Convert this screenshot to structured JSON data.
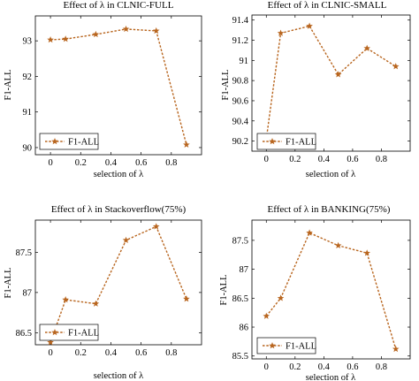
{
  "figure": {
    "line_color": "#b8651e",
    "marker": "star-icon"
  },
  "chart_data": [
    {
      "type": "line",
      "title": "Effect of λ in CLNIC-FULL",
      "xlabel": "selection of λ",
      "ylabel": "F1-ALL",
      "x": [
        0,
        0.1,
        0.3,
        0.5,
        0.7,
        0.9
      ],
      "series": [
        {
          "name": "F1-ALL",
          "values": [
            93.03,
            93.05,
            93.18,
            93.33,
            93.28,
            90.08
          ]
        }
      ],
      "xlim": [
        -0.1,
        1.0
      ],
      "ylim": [
        89.8,
        93.7
      ],
      "xticks": [
        0,
        0.2,
        0.4,
        0.6,
        0.8
      ],
      "xtick_labels": [
        "0",
        "0.2",
        "0.4",
        "0.6",
        "0.8"
      ],
      "yticks": [
        90,
        91,
        92,
        93
      ],
      "ytick_labels": [
        "90",
        "91",
        "92",
        "93"
      ],
      "grid": false,
      "legend_position": "bottom-left"
    },
    {
      "type": "line",
      "title": "Effect of λ in CLNIC-SMALL",
      "xlabel": "selection of λ",
      "ylabel": "F1-ALL",
      "x": [
        0,
        0.1,
        0.3,
        0.5,
        0.7,
        0.9
      ],
      "series": [
        {
          "name": "F1-ALL",
          "values": [
            90.22,
            91.27,
            91.34,
            90.86,
            91.12,
            90.94
          ]
        }
      ],
      "xlim": [
        -0.1,
        1.0
      ],
      "ylim": [
        90.1,
        91.45
      ],
      "xticks": [
        0,
        0.2,
        0.4,
        0.6,
        0.8
      ],
      "xtick_labels": [
        "0",
        "0.2",
        "0.4",
        "0.6",
        "0.8"
      ],
      "yticks": [
        90.2,
        90.4,
        90.6,
        90.8,
        91,
        91.2,
        91.4
      ],
      "ytick_labels": [
        "90.2",
        "90.4",
        "90.6",
        "90.8",
        "91",
        "91.2",
        "91.4"
      ],
      "grid": false,
      "legend_position": "bottom-right"
    },
    {
      "type": "line",
      "title": "Effect of λ in Stackoverflow(75%)",
      "xlabel": "selection of λ",
      "ylabel": "F1-ALL",
      "x": [
        0,
        0.1,
        0.3,
        0.5,
        0.7,
        0.9
      ],
      "series": [
        {
          "name": "F1-ALL",
          "values": [
            86.38,
            86.91,
            86.86,
            87.65,
            87.82,
            86.92
          ]
        }
      ],
      "xlim": [
        -0.1,
        1.0
      ],
      "ylim": [
        86.35,
        87.9
      ],
      "xticks": [
        0,
        0.2,
        0.4,
        0.6,
        0.8
      ],
      "xtick_labels": [
        "0",
        "0.2",
        "0.4",
        "0.6",
        "0.8"
      ],
      "yticks": [
        86.5,
        87,
        87.5
      ],
      "ytick_labels": [
        "86.5",
        "87",
        "87.5"
      ],
      "grid": false,
      "legend_position": "bottom-left"
    },
    {
      "type": "line",
      "title": "Effect of λ in BANKING(75%)",
      "xlabel": "selection of λ",
      "ylabel": "F1-ALL",
      "x": [
        0,
        0.1,
        0.3,
        0.5,
        0.7,
        0.9
      ],
      "series": [
        {
          "name": "F1-ALL",
          "values": [
            86.19,
            86.5,
            87.63,
            87.41,
            87.28,
            85.62
          ]
        }
      ],
      "xlim": [
        -0.1,
        1.0
      ],
      "ylim": [
        85.45,
        87.85
      ],
      "xticks": [
        0,
        0.2,
        0.4,
        0.6,
        0.8
      ],
      "xtick_labels": [
        "0",
        "0.2",
        "0.4",
        "0.6",
        "0.8"
      ],
      "yticks": [
        85.5,
        86,
        86.5,
        87,
        87.5
      ],
      "ytick_labels": [
        "85.5",
        "86",
        "86.5",
        "87",
        "87.5"
      ],
      "grid": false,
      "legend_position": "bottom-left"
    }
  ]
}
